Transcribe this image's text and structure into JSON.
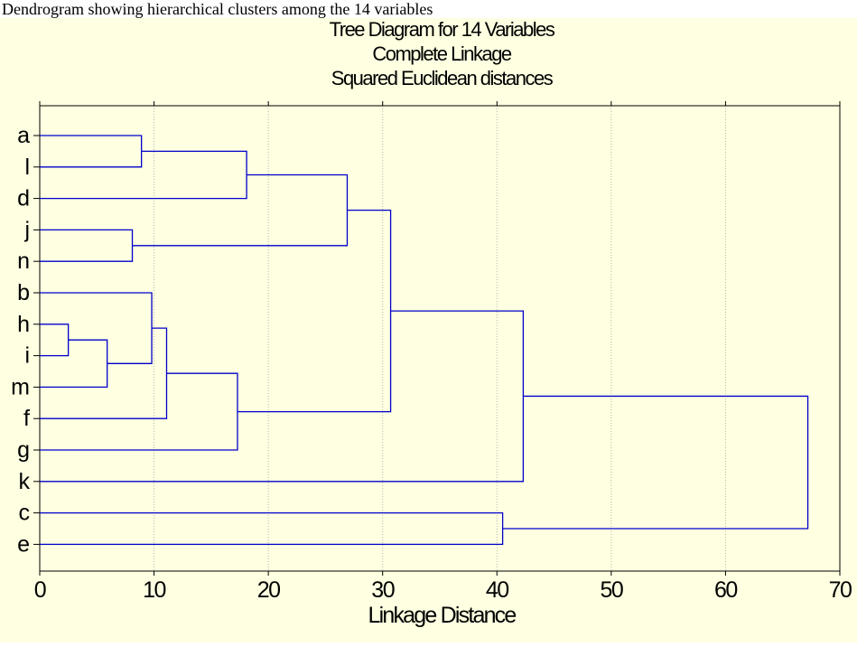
{
  "caption": "Dendrogram showing hierarchical clusters among the 14 variables",
  "colors": {
    "panel_background": "#ffffe1",
    "dendrogram_line": "#0000cc",
    "grid_line": "#b4b4b4",
    "axis": "#000000",
    "caption_background": "#ffffff"
  },
  "chart_data": {
    "type": "dendrogram",
    "title": "Tree Diagram for 14 Variables",
    "subtitle_1": "Complete Linkage",
    "subtitle_2": "Squared Euclidean distances",
    "xlabel": "Linkage Distance",
    "ylabel": "",
    "orientation": "horizontal",
    "xlim": [
      0,
      70
    ],
    "xticks": [
      0,
      10,
      20,
      30,
      40,
      50,
      60,
      70
    ],
    "grid": "vertical dotted",
    "leaf_order": [
      "a",
      "l",
      "d",
      "j",
      "n",
      "b",
      "h",
      "i",
      "m",
      "f",
      "g",
      "k",
      "c",
      "e"
    ],
    "merges": [
      {
        "id": "c1",
        "children": [
          "h",
          "i"
        ],
        "distance": 2.5
      },
      {
        "id": "c2",
        "children": [
          "c1",
          "m"
        ],
        "distance": 5.9
      },
      {
        "id": "c3",
        "children": [
          "j",
          "n"
        ],
        "distance": 8.1
      },
      {
        "id": "c4",
        "children": [
          "a",
          "l"
        ],
        "distance": 8.9
      },
      {
        "id": "c5",
        "children": [
          "b",
          "c2"
        ],
        "distance": 9.8
      },
      {
        "id": "c6",
        "children": [
          "c5",
          "f"
        ],
        "distance": 11.1
      },
      {
        "id": "c7",
        "children": [
          "c6",
          "g"
        ],
        "distance": 17.3
      },
      {
        "id": "c8",
        "children": [
          "c4",
          "d"
        ],
        "distance": 18.1
      },
      {
        "id": "c9",
        "children": [
          "c8",
          "c3"
        ],
        "distance": 26.9
      },
      {
        "id": "c10",
        "children": [
          "c9",
          "c7"
        ],
        "distance": 30.7
      },
      {
        "id": "c11",
        "children": [
          "c",
          "e"
        ],
        "distance": 40.5
      },
      {
        "id": "c12",
        "children": [
          "c10",
          "k"
        ],
        "distance": 42.3
      },
      {
        "id": "c13",
        "children": [
          "c12",
          "c11"
        ],
        "distance": 67.2
      }
    ]
  }
}
